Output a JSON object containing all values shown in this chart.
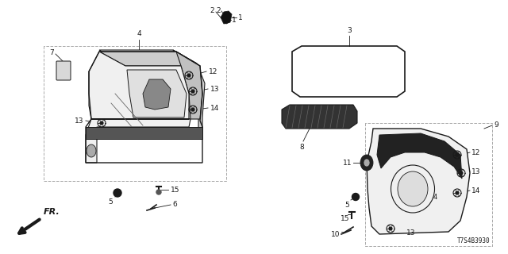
{
  "diagram_id": "T7S4B3930",
  "bg_color": "#ffffff",
  "line_color": "#1a1a1a"
}
